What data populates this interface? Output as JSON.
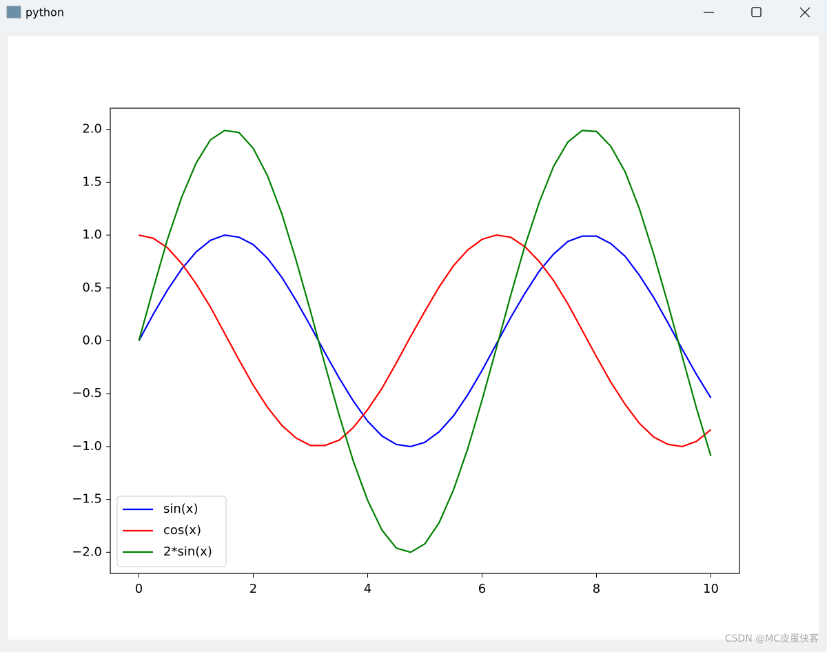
{
  "window": {
    "title": "python"
  },
  "watermark": "CSDN @MC皮蛋侠客",
  "chart_data": {
    "type": "line",
    "x": [
      0,
      0.25,
      0.5,
      0.75,
      1,
      1.25,
      1.5,
      1.75,
      2,
      2.25,
      2.5,
      2.75,
      3,
      3.25,
      3.5,
      3.75,
      4,
      4.25,
      4.5,
      4.75,
      5,
      5.25,
      5.5,
      5.75,
      6,
      6.25,
      6.5,
      6.75,
      7,
      7.25,
      7.5,
      7.75,
      8,
      8.25,
      8.5,
      8.75,
      9,
      9.25,
      9.5,
      9.75,
      10
    ],
    "series": [
      {
        "name": "sin(x)",
        "color": "#0000ff",
        "values": [
          0,
          0.25,
          0.48,
          0.68,
          0.84,
          0.95,
          1,
          0.98,
          0.91,
          0.78,
          0.6,
          0.38,
          0.14,
          -0.11,
          -0.35,
          -0.57,
          -0.76,
          -0.9,
          -0.98,
          -1,
          -0.96,
          -0.86,
          -0.71,
          -0.51,
          -0.28,
          -0.03,
          0.22,
          0.45,
          0.66,
          0.82,
          0.94,
          0.99,
          0.99,
          0.92,
          0.8,
          0.62,
          0.41,
          0.17,
          -0.08,
          -0.32,
          -0.54
        ]
      },
      {
        "name": "cos(x)",
        "color": "#ff0000",
        "values": [
          1,
          0.97,
          0.88,
          0.73,
          0.54,
          0.32,
          0.07,
          -0.18,
          -0.42,
          -0.63,
          -0.8,
          -0.92,
          -0.99,
          -0.99,
          -0.94,
          -0.82,
          -0.65,
          -0.45,
          -0.21,
          0.04,
          0.28,
          0.51,
          0.71,
          0.86,
          0.96,
          1,
          0.98,
          0.89,
          0.75,
          0.57,
          0.35,
          0.1,
          -0.15,
          -0.39,
          -0.6,
          -0.78,
          -0.91,
          -0.98,
          -1,
          -0.95,
          -0.84
        ]
      },
      {
        "name": "2*sin(x)",
        "color": "#008000",
        "values": [
          0,
          0.49,
          0.96,
          1.36,
          1.68,
          1.9,
          1.99,
          1.97,
          1.82,
          1.56,
          1.2,
          0.76,
          0.28,
          -0.22,
          -0.7,
          -1.14,
          -1.51,
          -1.79,
          -1.96,
          -2,
          -1.92,
          -1.72,
          -1.41,
          -1.02,
          -0.56,
          -0.07,
          0.43,
          0.9,
          1.31,
          1.65,
          1.88,
          1.99,
          1.98,
          1.84,
          1.6,
          1.25,
          0.82,
          0.35,
          -0.15,
          -0.64,
          -1.09
        ]
      }
    ],
    "xlim": [
      -0.5,
      10.5
    ],
    "ylim": [
      -2.2,
      2.2
    ],
    "xticks": [
      0,
      2,
      4,
      6,
      8,
      10
    ],
    "yticks": [
      {
        "value": -2,
        "label": "−2.0"
      },
      {
        "value": -1.5,
        "label": "−1.5"
      },
      {
        "value": -1,
        "label": "−1.0"
      },
      {
        "value": -0.5,
        "label": "−0.5"
      },
      {
        "value": 0,
        "label": "0.0"
      },
      {
        "value": 0.5,
        "label": "0.5"
      },
      {
        "value": 1,
        "label": "1.0"
      },
      {
        "value": 1.5,
        "label": "1.5"
      },
      {
        "value": 2,
        "label": "2.0"
      }
    ],
    "legend": "lower left"
  }
}
